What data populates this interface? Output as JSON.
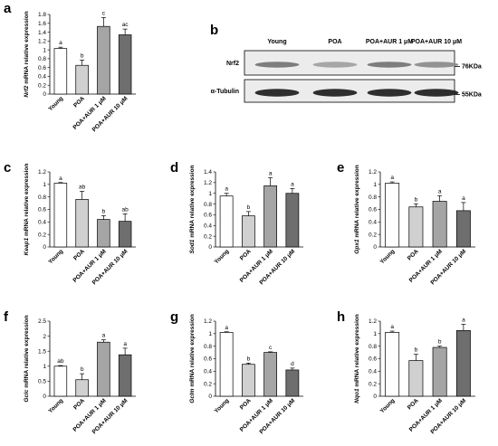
{
  "charts": [
    {
      "panel": "a",
      "chart_data": {
        "type": "bar",
        "ylabel_gene": "Nrf2",
        "ylabel_rest": " mRNA relative expression",
        "categories": [
          "Young",
          "POA",
          "POA+AUR 1 μM",
          "POA+AUR 10 μM"
        ],
        "values": [
          1.03,
          0.65,
          1.53,
          1.34
        ],
        "errors": [
          0.03,
          0.12,
          0.2,
          0.13
        ],
        "letters": [
          "a",
          "b",
          "c",
          "ac"
        ],
        "ylim": [
          0,
          1.8
        ],
        "yticks": [
          "0",
          "0.2",
          "0.4",
          "0.6",
          "0.8",
          "1",
          "1.2",
          "1.4",
          "1.6",
          "1.8"
        ]
      }
    },
    {
      "panel": "c",
      "chart_data": {
        "type": "bar",
        "ylabel_gene": "Keap1",
        "ylabel_rest": " mRNA relative expression",
        "categories": [
          "Young",
          "POA",
          "POA+AUR 1 μM",
          "POA+AUR 10 μM"
        ],
        "values": [
          1.02,
          0.76,
          0.44,
          0.41
        ],
        "errors": [
          0.01,
          0.13,
          0.06,
          0.12
        ],
        "letters": [
          "a",
          "ab",
          "b",
          "ab"
        ],
        "ylim": [
          0,
          1.2
        ],
        "yticks": [
          "0",
          "0.2",
          "0.4",
          "0.6",
          "0.8",
          "1",
          "1.2"
        ]
      }
    },
    {
      "panel": "d",
      "chart_data": {
        "type": "bar",
        "ylabel_gene": "Sod1",
        "ylabel_rest": " mRNA relative expression",
        "categories": [
          "Young",
          "POA",
          "POA+AUR 1 μM",
          "POA+AUR 10 μM"
        ],
        "values": [
          0.95,
          0.58,
          1.14,
          1.0
        ],
        "errors": [
          0.05,
          0.08,
          0.15,
          0.09
        ],
        "letters": [
          "a",
          "b",
          "a",
          "a"
        ],
        "ylim": [
          0,
          1.4
        ],
        "yticks": [
          "0",
          "0.2",
          "0.4",
          "0.6",
          "0.8",
          "1",
          "1.2",
          "1.4"
        ]
      }
    },
    {
      "panel": "e",
      "chart_data": {
        "type": "bar",
        "ylabel_gene": "Gpx1",
        "ylabel_rest": " mRNA relative expression",
        "categories": [
          "Young",
          "POA",
          "POA+AUR 1 μM",
          "POA+AUR 10 μM"
        ],
        "values": [
          1.02,
          0.64,
          0.73,
          0.58
        ],
        "errors": [
          0.02,
          0.05,
          0.09,
          0.13
        ],
        "letters": [
          "a",
          "b",
          "a",
          "a"
        ],
        "ylim": [
          0,
          1.2
        ],
        "yticks": [
          "0",
          "0.2",
          "0.4",
          "0.6",
          "0.8",
          "1",
          "1.2"
        ]
      }
    },
    {
      "panel": "f",
      "chart_data": {
        "type": "bar",
        "ylabel_gene": "Gclc",
        "ylabel_rest": " mRNA relative expression",
        "categories": [
          "Young",
          "POA",
          "POA+AUR 1 μM",
          "POA+AUR 10 μM"
        ],
        "values": [
          1.0,
          0.55,
          1.8,
          1.38
        ],
        "errors": [
          0.02,
          0.2,
          0.08,
          0.22
        ],
        "letters": [
          "ab",
          "b",
          "a",
          "a"
        ],
        "ylim": [
          0,
          2.5
        ],
        "yticks": [
          "0",
          "0.5",
          "1",
          "1.5",
          "2",
          "2.5"
        ]
      }
    },
    {
      "panel": "g",
      "chart_data": {
        "type": "bar",
        "ylabel_gene": "Gclm",
        "ylabel_rest": " mRNA relative expression",
        "categories": [
          "Young",
          "POA",
          "POA+AUR 1 μM",
          "POA+AUR 10 μM"
        ],
        "values": [
          1.02,
          0.51,
          0.7,
          0.42
        ],
        "errors": [
          0.01,
          0.02,
          0.01,
          0.03
        ],
        "letters": [
          "a",
          "b",
          "c",
          "d"
        ],
        "ylim": [
          0,
          1.2
        ],
        "yticks": [
          "0",
          "0.2",
          "0.4",
          "0.6",
          "0.8",
          "1",
          "1.2"
        ]
      }
    },
    {
      "panel": "h",
      "chart_data": {
        "type": "bar",
        "ylabel_gene": "Nqo1",
        "ylabel_rest": " mRNA relative expression",
        "categories": [
          "Young",
          "POA",
          "POA+AUR 1 μM",
          "POA+AUR 10 μM"
        ],
        "values": [
          1.02,
          0.57,
          0.78,
          1.05
        ],
        "errors": [
          0.02,
          0.1,
          0.02,
          0.1
        ],
        "letters": [
          "a",
          "b",
          "b",
          "a"
        ],
        "ylim": [
          0,
          1.2
        ],
        "yticks": [
          "0",
          "0.2",
          "0.4",
          "0.6",
          "0.8",
          "1",
          "1.2"
        ]
      }
    }
  ],
  "western_blot": {
    "panel": "b",
    "lanes": [
      "Young",
      "POA",
      "POA+AUR 1 μM",
      "POA+AUR 10 μM"
    ],
    "rows": [
      {
        "name": "Nrf2",
        "size": "76KDa",
        "intensities": [
          0.55,
          0.35,
          0.55,
          0.45
        ]
      },
      {
        "name": "α-Tubulin",
        "size": "55KDa",
        "intensities": [
          0.95,
          0.95,
          0.95,
          0.95
        ]
      }
    ]
  },
  "bar_colors": [
    "#ffffff",
    "#d0d0d0",
    "#a5a5a5",
    "#6e6e6e"
  ]
}
